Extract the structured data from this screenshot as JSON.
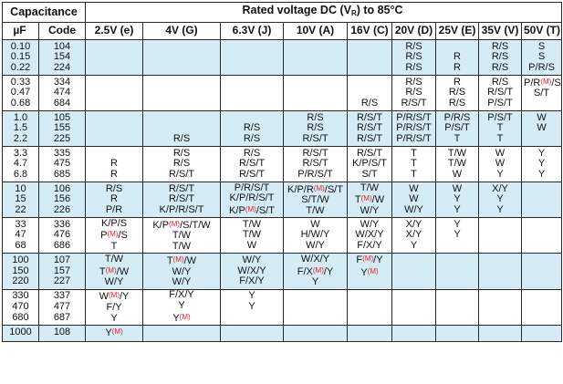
{
  "table": {
    "header": {
      "capacitance": "Capacitance",
      "rated_voltage_pre": "Rated voltage DC (V",
      "rated_voltage_sub": "R",
      "rated_voltage_post": ") to 85°C",
      "uf": "µF",
      "code": "Code",
      "voltages": [
        "2.5V (e)",
        "4V (G)",
        "6.3V (J)",
        "10V (A)",
        "16V (C)",
        "20V (D)",
        "25V (E)",
        "35V (V)",
        "50V (T)"
      ]
    },
    "marker_color": "#e0232a",
    "band_colors": {
      "blue": "#d5ecf6",
      "white": "#ffffff"
    },
    "groups": [
      {
        "shade": "blue",
        "uf": [
          "0.10",
          "0.15",
          "0.22"
        ],
        "code": [
          "104",
          "154",
          "224"
        ],
        "cells": [
          [
            "",
            "",
            ""
          ],
          [
            "",
            "",
            ""
          ],
          [
            "",
            "",
            ""
          ],
          [
            "",
            "",
            ""
          ],
          [
            "",
            "",
            ""
          ],
          [
            "R/S",
            "R/S",
            "R/S"
          ],
          [
            "",
            "R",
            "R"
          ],
          [
            "R/S",
            "R/S",
            "R/S"
          ],
          [
            "S",
            "S",
            "P/R/S"
          ]
        ]
      },
      {
        "shade": "white",
        "uf": [
          "0.33",
          "0.47",
          "0.68"
        ],
        "code": [
          "334",
          "474",
          "684"
        ],
        "cells": [
          [
            "",
            "",
            ""
          ],
          [
            "",
            "",
            ""
          ],
          [
            "",
            "",
            ""
          ],
          [
            "",
            "",
            ""
          ],
          [
            "",
            "",
            "R/S"
          ],
          [
            "R/S",
            "R/S",
            "R/S/T"
          ],
          [
            "R",
            "R/S",
            "R/S"
          ],
          [
            "R/S",
            "R/S/T",
            "P/S/T"
          ],
          [
            "P/R(M)/S/T",
            "S/T",
            ""
          ]
        ]
      },
      {
        "shade": "blue",
        "uf": [
          "1.0",
          "1.5",
          "2.2"
        ],
        "code": [
          "105",
          "155",
          "225"
        ],
        "cells": [
          [
            "",
            "",
            ""
          ],
          [
            "",
            "",
            "R/S"
          ],
          [
            "",
            "R/S",
            "R/S"
          ],
          [
            "R/S",
            "R/S",
            "R/S/T"
          ],
          [
            "R/S/T",
            "R/S/T",
            "R/S/T"
          ],
          [
            "P/R/S/T",
            "P/R/S/T",
            "P/R/S/T"
          ],
          [
            "P/R/S",
            "P/S/T",
            "T"
          ],
          [
            "P/S/T",
            "T",
            "T"
          ],
          [
            "W",
            "W",
            ""
          ]
        ]
      },
      {
        "shade": "white",
        "uf": [
          "3.3",
          "4.7",
          "6.8"
        ],
        "code": [
          "335",
          "475",
          "685"
        ],
        "cells": [
          [
            "",
            "R",
            "R"
          ],
          [
            "R/S",
            "R/S",
            "R/S/T"
          ],
          [
            "R/S",
            "R/S/T",
            "R/S/T"
          ],
          [
            "R/S/T",
            "R/S/T",
            "P/R/S/T"
          ],
          [
            "R/S/T",
            "K/P/S/T",
            "S/T"
          ],
          [
            "T",
            "T",
            "T"
          ],
          [
            "T/W",
            "T/W",
            "W"
          ],
          [
            "W",
            "W",
            "Y"
          ],
          [
            "Y",
            "Y",
            "Y"
          ]
        ]
      },
      {
        "shade": "blue",
        "uf": [
          "10",
          "15",
          "22"
        ],
        "code": [
          "106",
          "156",
          "226"
        ],
        "cells": [
          [
            "R/S",
            "R",
            "P/R"
          ],
          [
            "R/S/T",
            "R/S/T",
            "K/P/R/S/T"
          ],
          [
            "P/R/S/T",
            "K/P/R/S/T",
            "K/P(M)/S/T"
          ],
          [
            "K/P/R(M)/S/T",
            "S/T/W",
            "T/W"
          ],
          [
            "T/W",
            "T(M)/W",
            "W/Y"
          ],
          [
            "W",
            "W",
            "W/Y"
          ],
          [
            "W",
            "Y",
            "Y"
          ],
          [
            "X/Y",
            "Y",
            "Y"
          ],
          [
            "",
            "",
            ""
          ]
        ]
      },
      {
        "shade": "white",
        "uf": [
          "33",
          "47",
          "68"
        ],
        "code": [
          "336",
          "476",
          "686"
        ],
        "cells": [
          [
            "K/P/S",
            "P(M)/S",
            "T"
          ],
          [
            "K/P(M)/S/T/W",
            "T/W",
            "T/W"
          ],
          [
            "T/W",
            "T/W",
            "W"
          ],
          [
            "W",
            "H/W/Y",
            "W/Y"
          ],
          [
            "W/Y",
            "W/X/Y",
            "F/X/Y"
          ],
          [
            "X/Y",
            "X/Y",
            "Y"
          ],
          [
            "Y",
            "Y",
            ""
          ],
          [
            "",
            "",
            ""
          ],
          [
            "",
            "",
            ""
          ]
        ]
      },
      {
        "shade": "blue",
        "uf": [
          "100",
          "150",
          "220"
        ],
        "code": [
          "107",
          "157",
          "227"
        ],
        "cells": [
          [
            "T/W",
            "T(M)/W",
            "W/Y"
          ],
          [
            "T(M)/W",
            "W/Y",
            "W/Y"
          ],
          [
            "W/Y",
            "W/X/Y",
            "F/X/Y"
          ],
          [
            "W/X/Y",
            "F/X(M)/Y",
            "Y"
          ],
          [
            "F(M)/Y",
            "Y(M)",
            ""
          ],
          [
            "",
            "",
            ""
          ],
          [
            "",
            "",
            ""
          ],
          [
            "",
            "",
            ""
          ],
          [
            "",
            "",
            ""
          ]
        ]
      },
      {
        "shade": "white",
        "uf": [
          "330",
          "470",
          "680"
        ],
        "code": [
          "337",
          "477",
          "687"
        ],
        "cells": [
          [
            "W(M)/Y",
            "F/Y",
            "Y"
          ],
          [
            "F/X/Y",
            "Y",
            "Y(M)"
          ],
          [
            "Y",
            "Y",
            ""
          ],
          [
            "",
            "",
            ""
          ],
          [
            "",
            "",
            ""
          ],
          [
            "",
            "",
            ""
          ],
          [
            "",
            "",
            ""
          ],
          [
            "",
            "",
            ""
          ],
          [
            "",
            "",
            ""
          ]
        ]
      },
      {
        "shade": "blue",
        "uf": [
          "1000"
        ],
        "code": [
          "108"
        ],
        "cells": [
          [
            "Y(M)"
          ],
          [
            ""
          ],
          [
            ""
          ],
          [
            ""
          ],
          [
            ""
          ],
          [
            ""
          ],
          [
            ""
          ],
          [
            ""
          ],
          [
            ""
          ]
        ]
      }
    ]
  }
}
